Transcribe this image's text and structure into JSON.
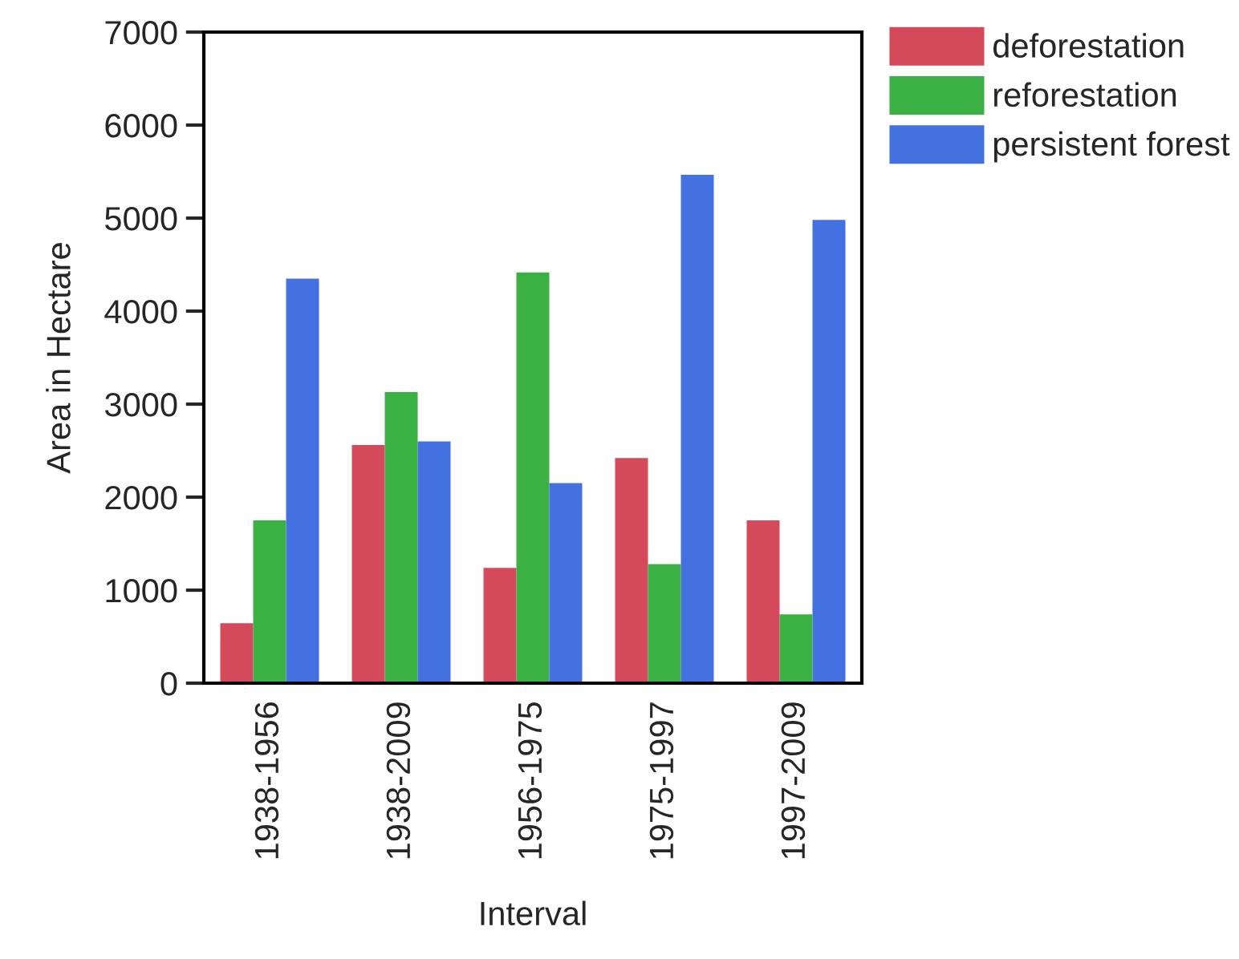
{
  "chart_data": {
    "type": "bar",
    "xlabel": "Interval",
    "ylabel": "Area in Hectare",
    "categories": [
      "1938-1956",
      "1938-2009",
      "1956-1975",
      "1975-1997",
      "1997-2009"
    ],
    "series": [
      {
        "name": "deforestation",
        "color": "#d44a5a",
        "values": [
          645,
          2560,
          1240,
          2420,
          1750
        ]
      },
      {
        "name": "reforestation",
        "color": "#3bb143",
        "values": [
          1750,
          3130,
          4415,
          1280,
          740
        ]
      },
      {
        "name": "persistent forest",
        "color": "#4372e0",
        "values": [
          4350,
          2600,
          2150,
          5465,
          4980
        ]
      }
    ],
    "ylim": [
      0,
      7000
    ],
    "yticks": [
      0,
      1000,
      2000,
      3000,
      4000,
      5000,
      6000,
      7000
    ],
    "grid": false,
    "legend": "top right"
  }
}
